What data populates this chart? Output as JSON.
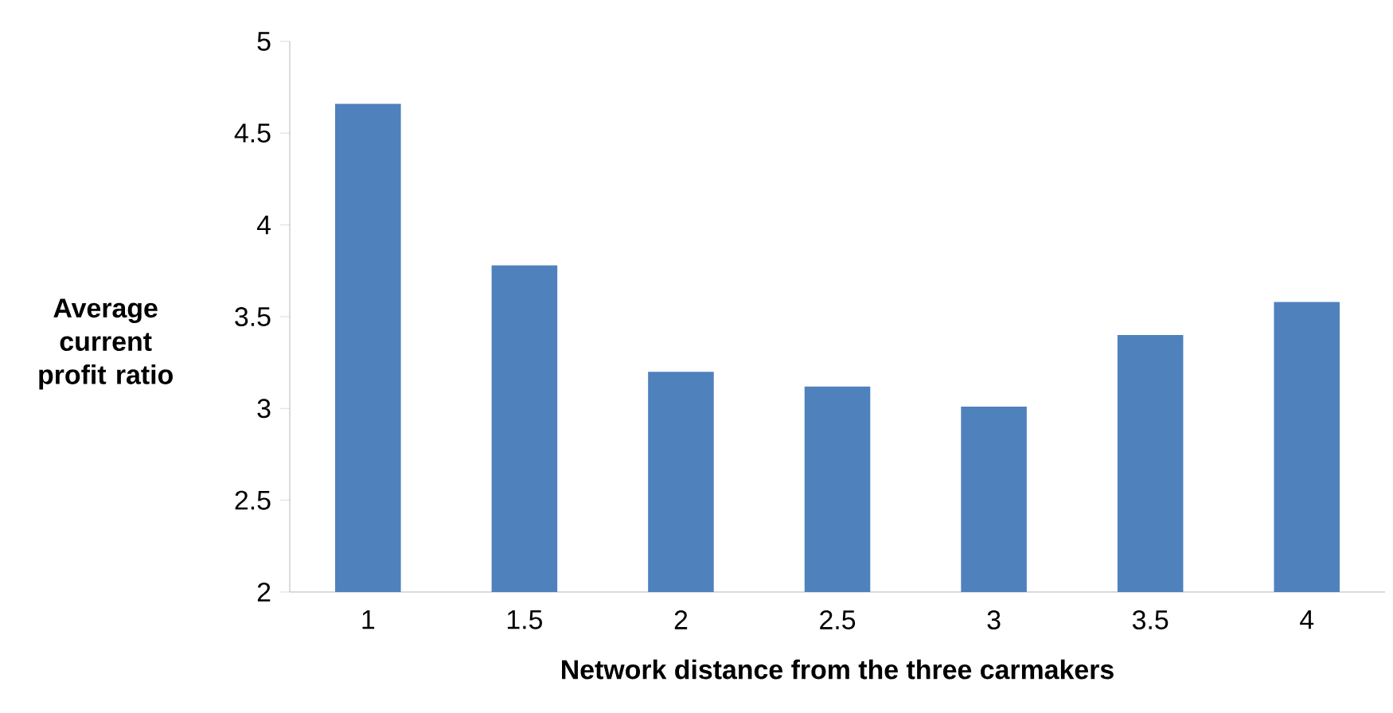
{
  "chart_data": {
    "type": "bar",
    "xlabel": "Network distance from the three carmakers",
    "ylabel": "Average current profit ratio",
    "categories": [
      "1",
      "1.5",
      "2",
      "2.5",
      "3",
      "3.5",
      "4"
    ],
    "values": [
      4.66,
      3.78,
      3.2,
      3.12,
      3.01,
      3.4,
      3.58
    ],
    "color": "#4f81bd",
    "ylim": [
      2,
      5
    ],
    "yticks": [
      2,
      2.5,
      3,
      3.5,
      4,
      4.5,
      5
    ],
    "grid": false
  }
}
